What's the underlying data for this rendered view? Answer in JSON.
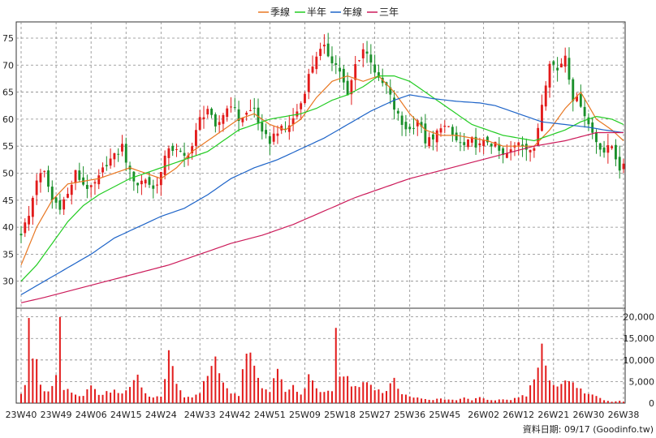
{
  "chart_data": {
    "type": "candlestick",
    "price_axis": {
      "ylim": [
        25,
        78
      ],
      "ticks": [
        30,
        35,
        40,
        45,
        50,
        55,
        60,
        65,
        70,
        75
      ]
    },
    "volume_axis": {
      "ylim": [
        0,
        22000
      ],
      "ticks": [
        0,
        5000,
        10000,
        15000,
        20000
      ],
      "tick_labels": [
        "0",
        "5,000",
        "10,000",
        "15,000",
        "20,000"
      ]
    },
    "x_tick_labels": [
      "23W40",
      "23W49",
      "24W06",
      "24W15",
      "24W24",
      "24W33",
      "24W42",
      "24W51",
      "25W09",
      "25W18",
      "25W27",
      "25W36",
      "25W45",
      "26W02",
      "26W12",
      "26W21",
      "26W30",
      "26W38"
    ],
    "legend": [
      {
        "name": "季線",
        "color": "#e87722"
      },
      {
        "name": "半年",
        "color": "#22cc22"
      },
      {
        "name": "年線",
        "color": "#1e64c8"
      },
      {
        "name": "三年",
        "color": "#cc1b5a"
      }
    ],
    "colors": {
      "up": "#e21b1b",
      "down": "#1a8f2a",
      "volume": "#e21b1b",
      "grid": "#888888"
    },
    "footer": "資料日期: 09/17 (Goodinfo.tw)",
    "weeks": 156,
    "close_anchors": [
      [
        0,
        39
      ],
      [
        2,
        42
      ],
      [
        4,
        49
      ],
      [
        6,
        50
      ],
      [
        8,
        45
      ],
      [
        10,
        44
      ],
      [
        12,
        46
      ],
      [
        14,
        50
      ],
      [
        16,
        48
      ],
      [
        18,
        47
      ],
      [
        20,
        49
      ],
      [
        22,
        52
      ],
      [
        24,
        53
      ],
      [
        26,
        55
      ],
      [
        28,
        50
      ],
      [
        30,
        48
      ],
      [
        32,
        49
      ],
      [
        34,
        47
      ],
      [
        36,
        50
      ],
      [
        38,
        55
      ],
      [
        40,
        54
      ],
      [
        42,
        53
      ],
      [
        44,
        55
      ],
      [
        46,
        60
      ],
      [
        48,
        62
      ],
      [
        50,
        58
      ],
      [
        52,
        61
      ],
      [
        54,
        63
      ],
      [
        56,
        60
      ],
      [
        58,
        61
      ],
      [
        60,
        62
      ],
      [
        62,
        57
      ],
      [
        64,
        56
      ],
      [
        66,
        58
      ],
      [
        68,
        58
      ],
      [
        70,
        60
      ],
      [
        72,
        63
      ],
      [
        74,
        68
      ],
      [
        76,
        72
      ],
      [
        78,
        73
      ],
      [
        80,
        71
      ],
      [
        82,
        69
      ],
      [
        84,
        64
      ],
      [
        86,
        70
      ],
      [
        88,
        73
      ],
      [
        90,
        71
      ],
      [
        92,
        67
      ],
      [
        94,
        66
      ],
      [
        96,
        62
      ],
      [
        98,
        59
      ],
      [
        100,
        58
      ],
      [
        102,
        60
      ],
      [
        104,
        56
      ],
      [
        106,
        56
      ],
      [
        108,
        59
      ],
      [
        110,
        58
      ],
      [
        112,
        56
      ],
      [
        114,
        55
      ],
      [
        116,
        56
      ],
      [
        118,
        55
      ],
      [
        120,
        56
      ],
      [
        122,
        55
      ],
      [
        124,
        53
      ],
      [
        126,
        54
      ],
      [
        128,
        56
      ],
      [
        130,
        55
      ],
      [
        132,
        54
      ],
      [
        134,
        63
      ],
      [
        136,
        71
      ],
      [
        138,
        69
      ],
      [
        140,
        72
      ],
      [
        142,
        64
      ],
      [
        144,
        63
      ],
      [
        146,
        59
      ],
      [
        148,
        56
      ],
      [
        150,
        54
      ],
      [
        152,
        55
      ],
      [
        154,
        51
      ],
      [
        155,
        51
      ]
    ],
    "ma_quarter": [
      [
        0,
        33
      ],
      [
        4,
        40
      ],
      [
        8,
        45
      ],
      [
        12,
        48
      ],
      [
        16,
        48.5
      ],
      [
        20,
        49
      ],
      [
        24,
        50
      ],
      [
        28,
        51
      ],
      [
        32,
        50
      ],
      [
        36,
        49
      ],
      [
        40,
        51
      ],
      [
        44,
        54
      ],
      [
        48,
        56
      ],
      [
        52,
        58
      ],
      [
        56,
        60
      ],
      [
        60,
        61
      ],
      [
        64,
        59
      ],
      [
        68,
        58
      ],
      [
        72,
        60
      ],
      [
        76,
        64
      ],
      [
        80,
        67
      ],
      [
        84,
        68
      ],
      [
        88,
        67
      ],
      [
        92,
        68
      ],
      [
        96,
        65
      ],
      [
        100,
        61
      ],
      [
        104,
        58
      ],
      [
        108,
        57
      ],
      [
        112,
        57
      ],
      [
        116,
        56.5
      ],
      [
        120,
        56
      ],
      [
        124,
        55
      ],
      [
        128,
        55
      ],
      [
        132,
        55
      ],
      [
        136,
        58
      ],
      [
        140,
        62
      ],
      [
        144,
        65
      ],
      [
        148,
        60
      ],
      [
        152,
        58
      ],
      [
        155,
        56
      ]
    ],
    "ma_half": [
      [
        0,
        30
      ],
      [
        4,
        33
      ],
      [
        8,
        37
      ],
      [
        12,
        41
      ],
      [
        16,
        44
      ],
      [
        20,
        46
      ],
      [
        24,
        47.5
      ],
      [
        28,
        49
      ],
      [
        32,
        50
      ],
      [
        36,
        51
      ],
      [
        40,
        52
      ],
      [
        44,
        53
      ],
      [
        48,
        54
      ],
      [
        52,
        56
      ],
      [
        56,
        58
      ],
      [
        60,
        59
      ],
      [
        64,
        60
      ],
      [
        68,
        60.5
      ],
      [
        72,
        61
      ],
      [
        76,
        62
      ],
      [
        80,
        63.5
      ],
      [
        84,
        64.5
      ],
      [
        88,
        66
      ],
      [
        92,
        68
      ],
      [
        96,
        68
      ],
      [
        100,
        67
      ],
      [
        104,
        65
      ],
      [
        108,
        63
      ],
      [
        112,
        61
      ],
      [
        116,
        59
      ],
      [
        120,
        58
      ],
      [
        124,
        57
      ],
      [
        128,
        56.5
      ],
      [
        132,
        56
      ],
      [
        136,
        57
      ],
      [
        140,
        58
      ],
      [
        144,
        59.5
      ],
      [
        148,
        60.5
      ],
      [
        152,
        60
      ],
      [
        155,
        59
      ]
    ],
    "ma_year": [
      [
        0,
        27.5
      ],
      [
        6,
        30
      ],
      [
        12,
        32.5
      ],
      [
        18,
        35
      ],
      [
        24,
        38
      ],
      [
        30,
        40
      ],
      [
        36,
        42
      ],
      [
        42,
        43.5
      ],
      [
        48,
        46
      ],
      [
        54,
        49
      ],
      [
        60,
        51
      ],
      [
        66,
        52.5
      ],
      [
        72,
        54.5
      ],
      [
        78,
        56.5
      ],
      [
        84,
        59
      ],
      [
        90,
        61.5
      ],
      [
        96,
        63.5
      ],
      [
        100,
        64.5
      ],
      [
        106,
        63.8
      ],
      [
        112,
        63.3
      ],
      [
        118,
        63
      ],
      [
        122,
        62.5
      ],
      [
        128,
        61
      ],
      [
        134,
        59.5
      ],
      [
        140,
        59
      ],
      [
        146,
        58.5
      ],
      [
        150,
        58
      ],
      [
        155,
        57.5
      ]
    ],
    "ma_3y": [
      [
        0,
        26
      ],
      [
        6,
        27
      ],
      [
        14,
        28.5
      ],
      [
        22,
        30
      ],
      [
        30,
        31.5
      ],
      [
        38,
        33
      ],
      [
        46,
        35
      ],
      [
        54,
        37
      ],
      [
        62,
        38.5
      ],
      [
        70,
        40.5
      ],
      [
        78,
        43
      ],
      [
        86,
        45.5
      ],
      [
        94,
        47.5
      ],
      [
        100,
        49
      ],
      [
        108,
        50.5
      ],
      [
        116,
        52
      ],
      [
        124,
        53.5
      ],
      [
        132,
        55
      ],
      [
        140,
        56
      ],
      [
        148,
        57.5
      ],
      [
        155,
        57.5
      ]
    ],
    "volume_anchors": [
      [
        0,
        2500
      ],
      [
        1,
        4000
      ],
      [
        2,
        21000
      ],
      [
        3,
        11500
      ],
      [
        4,
        9000
      ],
      [
        5,
        4000
      ],
      [
        6,
        3000
      ],
      [
        7,
        2500
      ],
      [
        8,
        3500
      ],
      [
        9,
        7500
      ],
      [
        10,
        20500
      ],
      [
        11,
        3500
      ],
      [
        12,
        3000
      ],
      [
        14,
        2000
      ],
      [
        16,
        1500
      ],
      [
        18,
        4800
      ],
      [
        20,
        1800
      ],
      [
        22,
        2500
      ],
      [
        24,
        3000
      ],
      [
        26,
        2000
      ],
      [
        28,
        4000
      ],
      [
        30,
        6000
      ],
      [
        32,
        2000
      ],
      [
        34,
        1500
      ],
      [
        36,
        1500
      ],
      [
        38,
        11500
      ],
      [
        40,
        4000
      ],
      [
        42,
        1500
      ],
      [
        44,
        1200
      ],
      [
        46,
        2500
      ],
      [
        48,
        6500
      ],
      [
        50,
        10500
      ],
      [
        52,
        4500
      ],
      [
        54,
        2500
      ],
      [
        56,
        1500
      ],
      [
        58,
        13000
      ],
      [
        60,
        8000
      ],
      [
        62,
        3500
      ],
      [
        64,
        2500
      ],
      [
        66,
        8000
      ],
      [
        68,
        3000
      ],
      [
        70,
        4000
      ],
      [
        72,
        1800
      ],
      [
        74,
        6000
      ],
      [
        76,
        3500
      ],
      [
        78,
        2500
      ],
      [
        80,
        3000
      ],
      [
        81,
        17500
      ],
      [
        82,
        7000
      ],
      [
        84,
        5500
      ],
      [
        86,
        3500
      ],
      [
        88,
        5000
      ],
      [
        90,
        4000
      ],
      [
        92,
        3000
      ],
      [
        94,
        2500
      ],
      [
        96,
        5500
      ],
      [
        98,
        2000
      ],
      [
        100,
        1500
      ],
      [
        102,
        1200
      ],
      [
        104,
        1000
      ],
      [
        106,
        800
      ],
      [
        108,
        1000
      ],
      [
        110,
        800
      ],
      [
        112,
        700
      ],
      [
        114,
        1200
      ],
      [
        116,
        600
      ],
      [
        118,
        1500
      ],
      [
        120,
        800
      ],
      [
        122,
        600
      ],
      [
        124,
        1000
      ],
      [
        126,
        800
      ],
      [
        128,
        1500
      ],
      [
        130,
        1800
      ],
      [
        132,
        5500
      ],
      [
        134,
        13000
      ],
      [
        136,
        6000
      ],
      [
        138,
        3500
      ],
      [
        140,
        5500
      ],
      [
        142,
        4500
      ],
      [
        144,
        3000
      ],
      [
        146,
        2000
      ],
      [
        148,
        1500
      ],
      [
        150,
        600
      ],
      [
        152,
        300
      ],
      [
        154,
        500
      ],
      [
        155,
        300
      ]
    ]
  }
}
